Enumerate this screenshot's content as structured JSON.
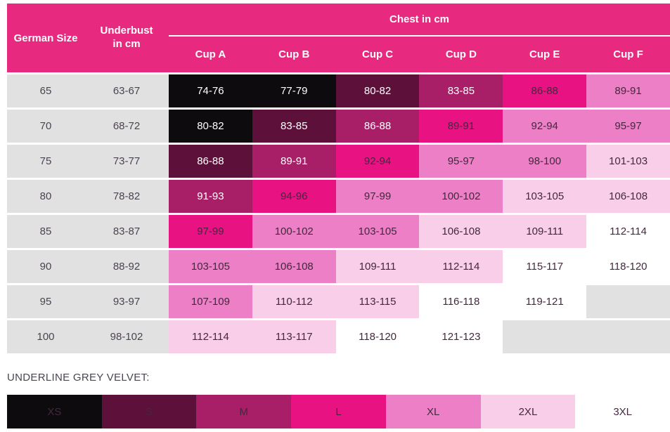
{
  "chart_data": {
    "type": "table",
    "header": {
      "german_size": "German Size",
      "underbust": "Underbust in cm",
      "chest_title": "Chest in cm",
      "cups": [
        "Cup A",
        "Cup B",
        "Cup C",
        "Cup D",
        "Cup E",
        "Cup F"
      ]
    },
    "rows": [
      {
        "size": "65",
        "underbust": "63-67",
        "cells": [
          {
            "v": "74-76",
            "s": "xs"
          },
          {
            "v": "77-79",
            "s": "xs"
          },
          {
            "v": "80-82",
            "s": "s"
          },
          {
            "v": "83-85",
            "s": "m"
          },
          {
            "v": "86-88",
            "s": "l"
          },
          {
            "v": "89-91",
            "s": "xl"
          }
        ]
      },
      {
        "size": "70",
        "underbust": "68-72",
        "cells": [
          {
            "v": "80-82",
            "s": "xs"
          },
          {
            "v": "83-85",
            "s": "s"
          },
          {
            "v": "86-88",
            "s": "m"
          },
          {
            "v": "89-91",
            "s": "l"
          },
          {
            "v": "92-94",
            "s": "xl"
          },
          {
            "v": "95-97",
            "s": "xl"
          }
        ]
      },
      {
        "size": "75",
        "underbust": "73-77",
        "cells": [
          {
            "v": "86-88",
            "s": "s"
          },
          {
            "v": "89-91",
            "s": "m"
          },
          {
            "v": "92-94",
            "s": "l"
          },
          {
            "v": "95-97",
            "s": "xl"
          },
          {
            "v": "98-100",
            "s": "xl"
          },
          {
            "v": "101-103",
            "s": "2xl"
          }
        ]
      },
      {
        "size": "80",
        "underbust": "78-82",
        "cells": [
          {
            "v": "91-93",
            "s": "m"
          },
          {
            "v": "94-96",
            "s": "l"
          },
          {
            "v": "97-99",
            "s": "xl"
          },
          {
            "v": "100-102",
            "s": "xl"
          },
          {
            "v": "103-105",
            "s": "2xl"
          },
          {
            "v": "106-108",
            "s": "2xl"
          }
        ]
      },
      {
        "size": "85",
        "underbust": "83-87",
        "cells": [
          {
            "v": "97-99",
            "s": "l"
          },
          {
            "v": "100-102",
            "s": "xl"
          },
          {
            "v": "103-105",
            "s": "xl"
          },
          {
            "v": "106-108",
            "s": "2xl"
          },
          {
            "v": "109-111",
            "s": "2xl"
          },
          {
            "v": "112-114",
            "s": "3xl"
          }
        ]
      },
      {
        "size": "90",
        "underbust": "88-92",
        "cells": [
          {
            "v": "103-105",
            "s": "xl"
          },
          {
            "v": "106-108",
            "s": "xl"
          },
          {
            "v": "109-111",
            "s": "2xl"
          },
          {
            "v": "112-114",
            "s": "2xl"
          },
          {
            "v": "115-117",
            "s": "3xl"
          },
          {
            "v": "118-120",
            "s": "3xl"
          }
        ]
      },
      {
        "size": "95",
        "underbust": "93-97",
        "cells": [
          {
            "v": "107-109",
            "s": "xl"
          },
          {
            "v": "110-112",
            "s": "2xl"
          },
          {
            "v": "113-115",
            "s": "2xl"
          },
          {
            "v": "116-118",
            "s": "3xl"
          },
          {
            "v": "119-121",
            "s": "3xl"
          },
          {
            "v": "",
            "s": "empty"
          }
        ]
      },
      {
        "size": "100",
        "underbust": "98-102",
        "cells": [
          {
            "v": "112-114",
            "s": "2xl"
          },
          {
            "v": "113-117",
            "s": "2xl"
          },
          {
            "v": "118-120",
            "s": "3xl"
          },
          {
            "v": "121-123",
            "s": "3xl"
          },
          {
            "v": "",
            "s": "empty"
          },
          {
            "v": "",
            "s": "empty"
          }
        ]
      }
    ],
    "legend": {
      "title": "UNDERLINE GREY VELVET:",
      "items": [
        {
          "label": "XS",
          "s": "xs"
        },
        {
          "label": "S",
          "s": "s"
        },
        {
          "label": "M",
          "s": "m"
        },
        {
          "label": "L",
          "s": "l"
        },
        {
          "label": "XL",
          "s": "xl"
        },
        {
          "label": "2XL",
          "s": "2xl"
        },
        {
          "label": "3XL",
          "s": "3xl"
        }
      ]
    },
    "colors": {
      "header": "#e72a7f",
      "xs": "#0d0b0d",
      "s": "#5d1039",
      "m": "#a81e67",
      "l": "#e91283",
      "xl": "#ec7fc5",
      "2xl": "#f9cee8",
      "3xl": "#ffffff",
      "empty": "#e2e1e2",
      "grey_cell": "#e2e1e2"
    }
  }
}
